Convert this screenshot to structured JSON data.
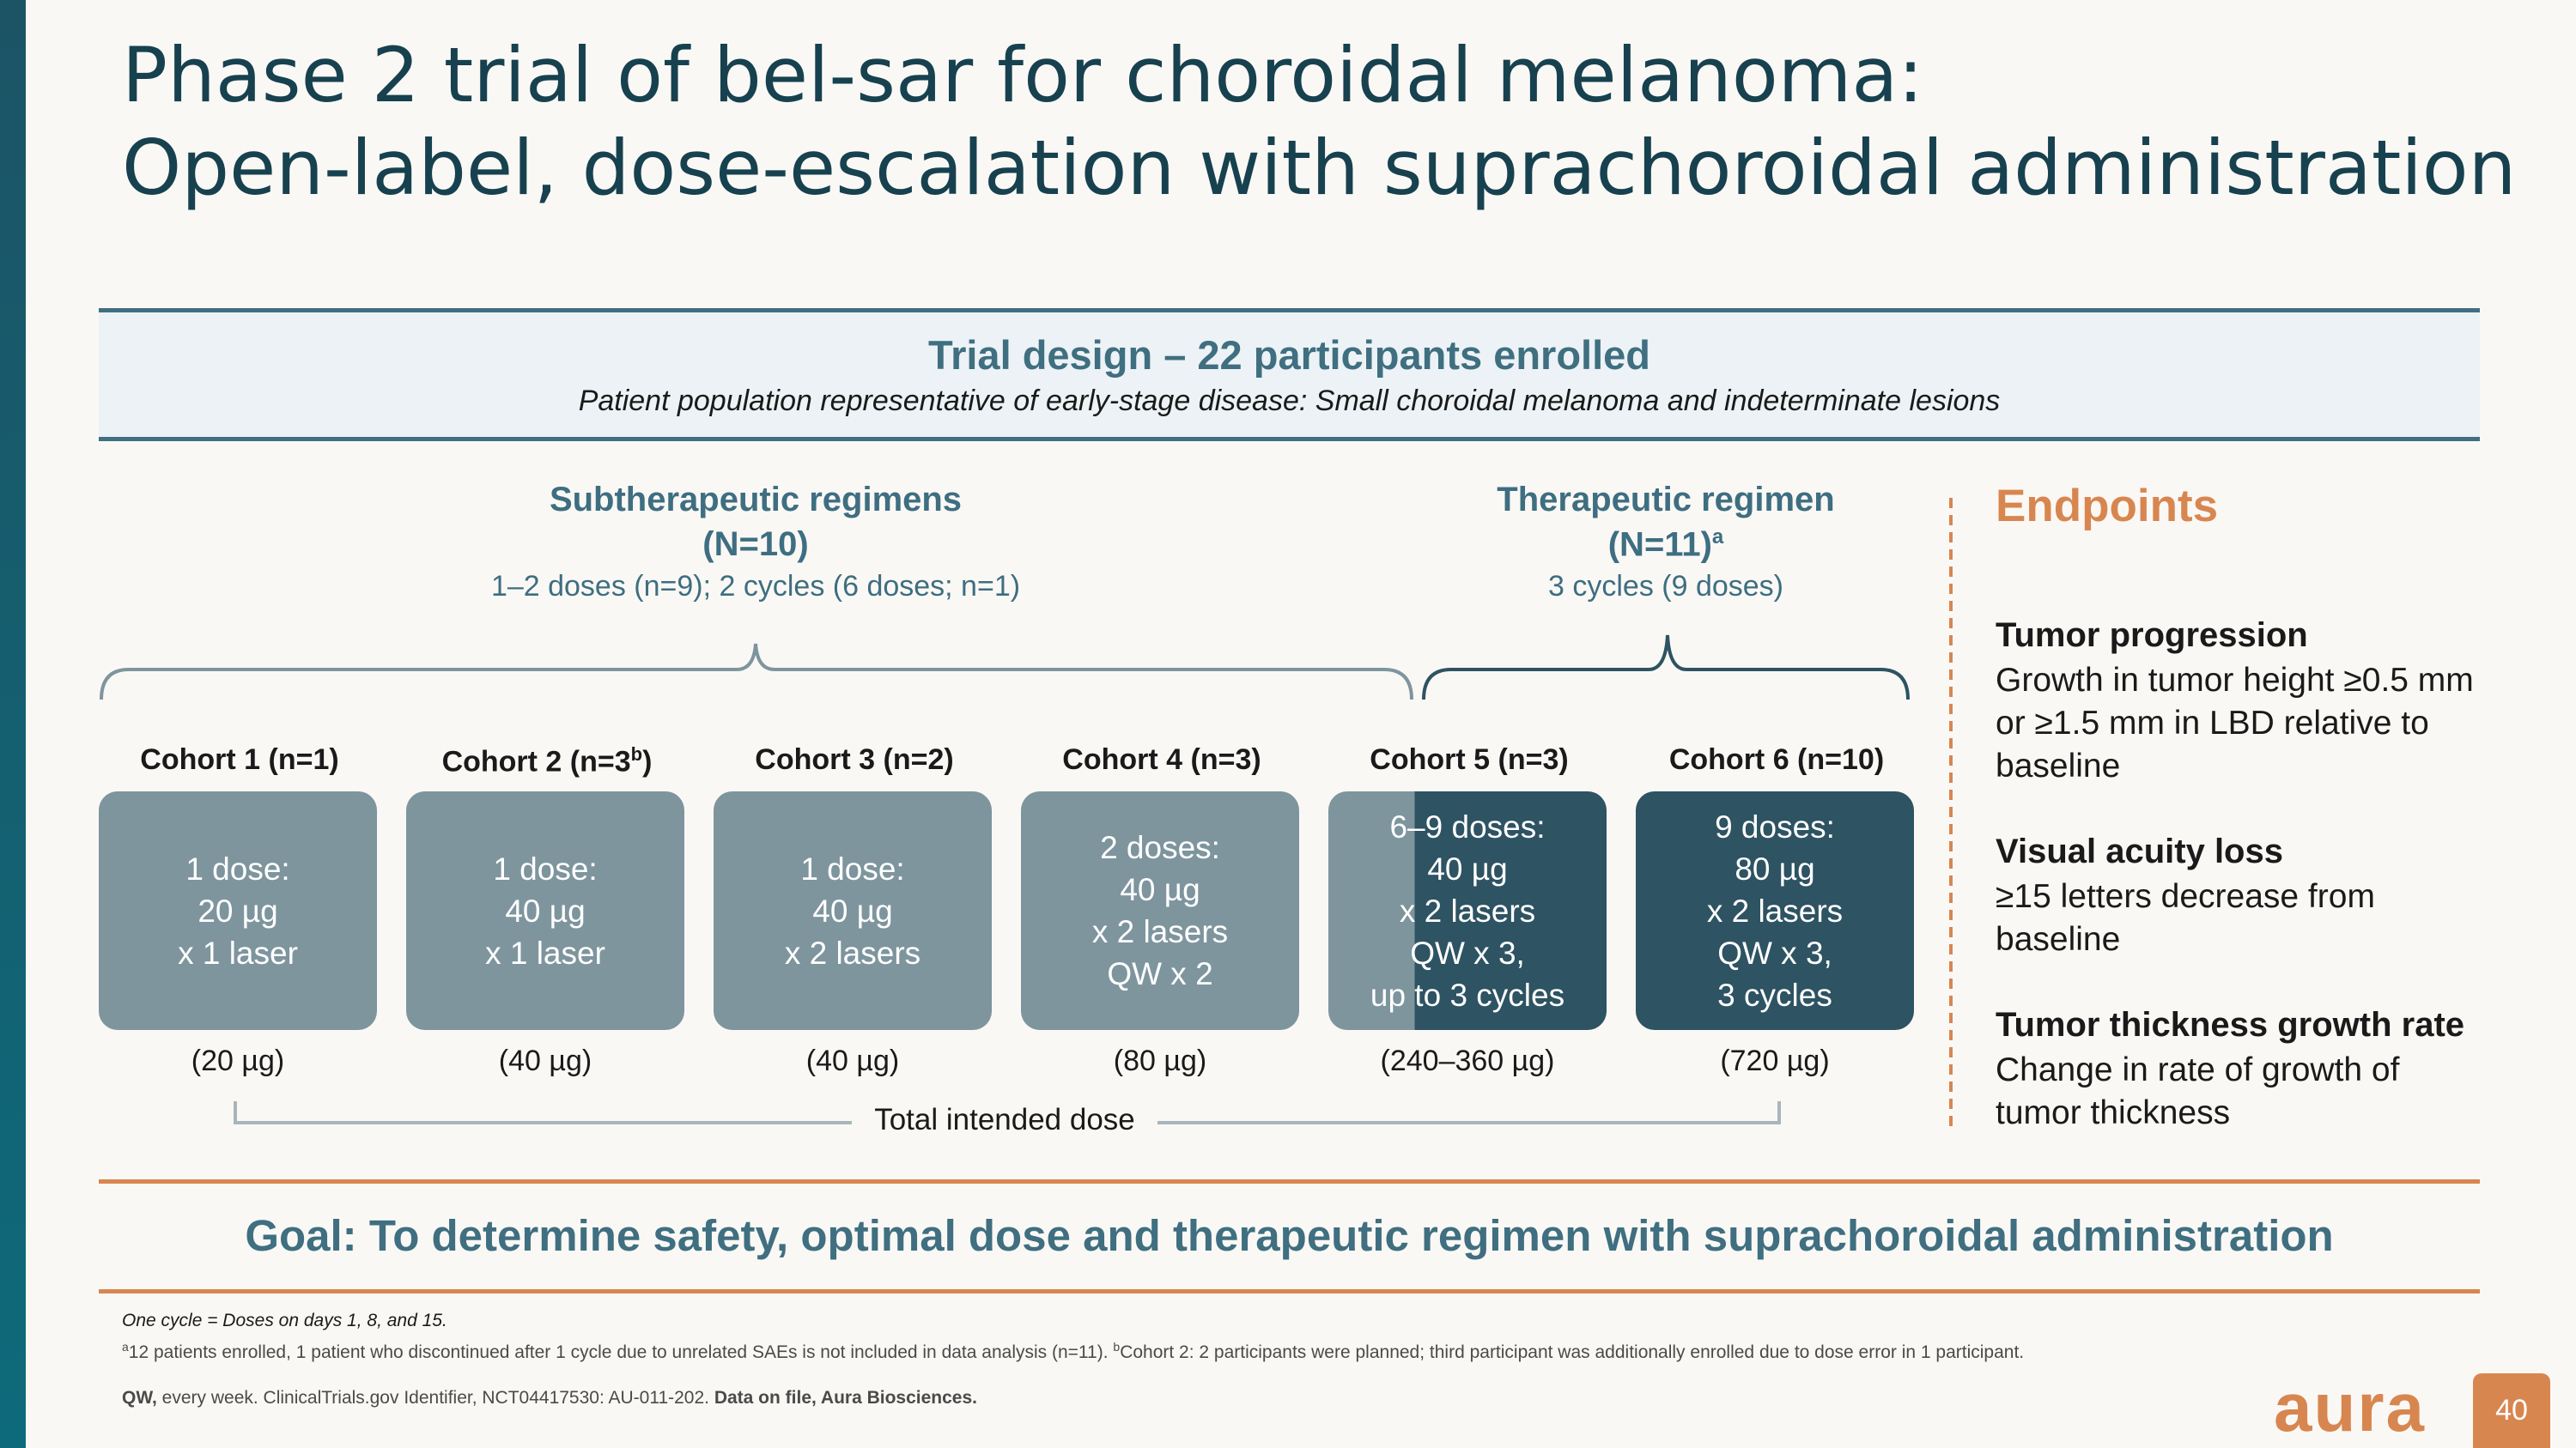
{
  "title": {
    "line1": "Phase 2 trial of bel-sar for choroidal melanoma:",
    "line2": "Open-label, dose-escalation with suprachoroidal administration"
  },
  "trial_design": {
    "title": "Trial design – 22 participants enrolled",
    "subtitle": "Patient population representative of early-stage disease: Small choroidal melanoma and indeterminate lesions"
  },
  "groups": {
    "subtherapeutic": {
      "title": "Subtherapeutic regimens",
      "n": "(N=10)",
      "note": "1–2 doses (n=9); 2 cycles (6 doses; n=1)"
    },
    "therapeutic": {
      "title": "Therapeutic regimen",
      "n": "(N=11)",
      "n_sup": "a",
      "note": "3 cycles (9 doses)"
    }
  },
  "cohorts": [
    {
      "label": "Cohort 1 (n=1)",
      "lines": [
        "1 dose:",
        "20 µg",
        "x  1 laser"
      ],
      "total": "(20 µg)"
    },
    {
      "label": "Cohort 2 (n=3",
      "label_sup": "b",
      "label_end": ")",
      "lines": [
        "1 dose:",
        "40 µg",
        "x  1 laser"
      ],
      "total": "(40 µg)"
    },
    {
      "label": "Cohort 3 (n=2)",
      "lines": [
        "1 dose:",
        "40 µg",
        "x  2 lasers"
      ],
      "total": "(40 µg)"
    },
    {
      "label": "Cohort 4 (n=3)",
      "lines": [
        "2 doses:",
        "40 µg",
        "x  2 lasers",
        "QW x 2"
      ],
      "total": "(80 µg)"
    },
    {
      "label": "Cohort 5 (n=3)",
      "lines": [
        "6–9 doses:",
        "40 µg",
        "x  2 lasers",
        "QW x 3,",
        "up to 3 cycles"
      ],
      "total": "(240–360 µg)"
    },
    {
      "label": "Cohort 6 (n=10)",
      "lines": [
        "9 doses:",
        "80 µg",
        "x  2 lasers",
        "QW x 3,",
        "3 cycles"
      ],
      "total": "(720 µg)"
    }
  ],
  "total_intended_dose": "Total intended dose",
  "endpoints": {
    "title": "Endpoints",
    "items": [
      {
        "head": "Tumor progression",
        "body": [
          "Growth in tumor height ≥0.5 mm",
          "or ≥1.5 mm in LBD relative to",
          "baseline"
        ]
      },
      {
        "head": "Visual acuity loss",
        "body": [
          "≥15 letters decrease from",
          "baseline"
        ]
      },
      {
        "head": "Tumor thickness growth rate",
        "body": [
          "Change in rate of growth of",
          "tumor thickness"
        ]
      }
    ]
  },
  "goal": "Goal: To determine safety, optimal dose and therapeutic regimen with suprachoroidal administration",
  "footnotes": {
    "cycle": "One cycle = Doses on days 1, 8, and 15.",
    "a_sup": "a",
    "a_text": "12 patients enrolled, 1 patient who discontinued after 1 cycle due to unrelated SAEs is not included in data analysis (n=11). ",
    "b_sup": "b",
    "b_text": "Cohort 2: 2 participants were planned; third participant was additionally enrolled due to dose error in 1 participant.",
    "qw_bold": "QW,",
    "qw_text": " every week. ClinicalTrials.gov Identifier, NCT04417530: AU-011-202. ",
    "data_bold": "Data on file, Aura Biosciences."
  },
  "logo": "aura",
  "page_number": "40",
  "colors": {
    "teal": "#3f6f80",
    "dark_teal": "#2e5362",
    "grey_box": "#7e959e",
    "orange": "#d88650",
    "title": "#17414f"
  }
}
